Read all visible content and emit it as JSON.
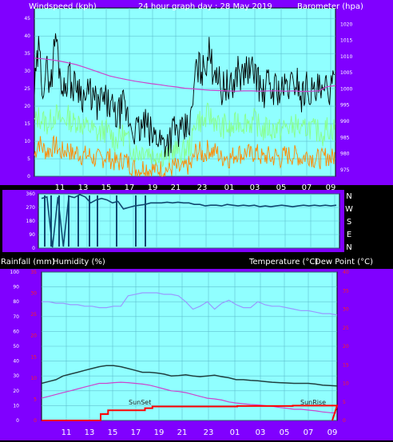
{
  "chart_data": [
    {
      "type": "line",
      "title": "24 hour graph day : 28 May 2019",
      "ylabel": "Windspeed (kph)",
      "y2label": "Barometer (hpa)",
      "x_ticks": [
        "11",
        "13",
        "15",
        "17",
        "19",
        "21",
        "23",
        "01",
        "03",
        "05",
        "07",
        "09"
      ],
      "y_ticks": [
        0,
        5,
        10,
        15,
        20,
        25,
        30,
        35,
        40,
        45
      ],
      "y2_ticks": [
        975,
        980,
        985,
        990,
        995,
        1000,
        1005,
        1010,
        1015,
        1020
      ],
      "ylim": [
        0,
        48
      ],
      "y2lim": [
        973,
        1025
      ],
      "grid": true,
      "series": [
        {
          "role": "gust",
          "color": "#000000",
          "values": [
            24,
            36,
            26,
            30,
            27,
            41,
            30,
            24,
            30,
            25,
            27,
            24,
            22,
            24,
            22,
            20,
            22,
            21,
            20,
            17,
            18,
            20,
            17,
            14,
            13,
            13,
            15,
            13,
            11,
            12,
            10,
            10,
            11,
            14,
            12,
            12,
            14,
            16,
            30,
            31,
            30,
            36,
            31,
            31,
            24,
            27,
            24,
            26,
            31,
            28,
            31,
            29,
            31,
            26,
            23,
            27,
            24,
            26,
            24,
            25,
            26,
            26,
            28,
            22,
            26,
            25,
            23,
            25,
            22,
            26,
            24,
            27
          ]
        },
        {
          "role": "average",
          "color": "#88ff88",
          "values": [
            15,
            17,
            16,
            15,
            16,
            18,
            16,
            16,
            17,
            15,
            16,
            15,
            14,
            14,
            13,
            12,
            13,
            13,
            12,
            10,
            11,
            12,
            10,
            8,
            7,
            7,
            8,
            7,
            6,
            7,
            6,
            6,
            6,
            8,
            7,
            7,
            8,
            9,
            16,
            16,
            15,
            18,
            16,
            16,
            13,
            15,
            13,
            14,
            16,
            15,
            16,
            15,
            16,
            14,
            13,
            14,
            13,
            14,
            13,
            14,
            14,
            14,
            15,
            12,
            14,
            14,
            13,
            13,
            12,
            14,
            13,
            14
          ]
        },
        {
          "role": "low",
          "color": "#ff8800",
          "values": [
            6,
            10,
            8,
            7,
            8,
            9,
            7,
            7,
            8,
            6,
            7,
            6,
            6,
            6,
            5,
            5,
            5,
            6,
            5,
            4,
            4,
            5,
            4,
            3,
            2,
            2,
            3,
            2,
            2,
            2,
            2,
            2,
            2,
            3,
            2,
            2,
            3,
            3,
            7,
            7,
            6,
            8,
            7,
            7,
            5,
            6,
            5,
            6,
            7,
            6,
            7,
            6,
            7,
            6,
            5,
            6,
            5,
            6,
            5,
            6,
            6,
            6,
            6,
            5,
            6,
            6,
            5,
            5,
            5,
            6,
            5,
            6
          ]
        },
        {
          "role": "barometer",
          "color": "#cc44cc",
          "axis": "y2",
          "values": [
            1009.5,
            1009.3,
            1009,
            1008.6,
            1008.1,
            1007.5,
            1006.7,
            1005.8,
            1004.9,
            1004,
            1003.4,
            1002.9,
            1002.4,
            1002,
            1001.6,
            1001.3,
            1000.9,
            1000.6,
            1000.2,
            1000,
            999.8,
            999.6,
            999.5,
            999.4,
            999.3,
            999.4,
            999.4,
            999.3,
            999.4,
            999.4,
            999.3,
            999.4,
            999.2,
            999.3,
            999.4,
            1000.7,
            1001
          ]
        }
      ]
    },
    {
      "type": "scatter",
      "ylabel_right": [
        "N",
        "W",
        "S",
        "E",
        "N"
      ],
      "y_ticks": [
        0,
        90,
        180,
        270,
        360
      ],
      "ylim": [
        0,
        360
      ],
      "series": [
        {
          "role": "direction",
          "color": "#104870",
          "values": [
            330,
            340,
            5,
            340,
            10,
            345,
            335,
            355,
            340,
            300,
            320,
            330,
            320,
            300,
            310,
            260,
            270,
            280,
            285,
            290,
            300,
            300,
            300,
            305,
            300,
            305,
            300,
            300,
            290,
            290,
            280,
            285,
            285,
            280,
            290,
            285,
            280,
            285,
            280,
            285,
            275,
            280,
            275,
            280,
            285,
            280,
            275,
            280,
            285,
            280,
            285,
            280,
            285,
            280,
            285
          ]
        }
      ]
    },
    {
      "type": "line",
      "labels_top": [
        "Rainfall (mm)",
        "Humidity (%)",
        "Temperature (°C)",
        "Dew Point (°C)"
      ],
      "y_ticks_humidity": [
        0,
        10,
        20,
        30,
        40,
        50,
        60,
        70,
        80,
        90,
        100
      ],
      "y_ticks_rain": [
        0,
        5,
        10,
        15,
        20,
        25,
        30,
        35
      ],
      "y_ticks_temp": [
        0,
        5,
        10,
        15,
        20,
        25,
        30,
        35,
        40
      ],
      "annotations": [
        "SunSet",
        "SunRise"
      ],
      "series": [
        {
          "role": "humidity",
          "color": "#9999ff",
          "values": [
            80,
            80,
            79,
            79,
            78,
            78,
            77,
            77,
            76,
            76,
            77,
            77,
            84,
            85,
            86,
            86,
            86,
            85,
            85,
            84,
            80,
            75,
            77,
            80,
            75,
            79,
            81,
            78,
            76,
            76,
            80,
            78,
            77,
            77,
            76,
            75,
            74,
            74,
            73,
            72,
            72,
            71
          ]
        },
        {
          "role": "temperature",
          "color": "#204040",
          "values": [
            10,
            10.5,
            11,
            12,
            12.5,
            13,
            13.5,
            14,
            14.5,
            14.8,
            14.8,
            14.5,
            14,
            13.5,
            13,
            13,
            12.8,
            12.5,
            12,
            12.1,
            12.3,
            12,
            11.8,
            12,
            12.2,
            11.8,
            11.5,
            11,
            11,
            10.8,
            10.7,
            10.5,
            10.3,
            10.2,
            10.1,
            10,
            10,
            10,
            9.8,
            9.5,
            9.4,
            9.3
          ]
        },
        {
          "role": "dew_point",
          "color": "#cc44cc",
          "values": [
            6,
            6.5,
            7,
            7.5,
            8,
            8.5,
            9,
            9.5,
            10,
            10,
            10.2,
            10.3,
            10.2,
            10,
            9.8,
            9.5,
            9,
            8.5,
            8,
            7.8,
            7.5,
            7,
            6.5,
            6,
            5.8,
            5.5,
            5,
            4.7,
            4.5,
            4.3,
            4.2,
            4,
            3.8,
            3.5,
            3.3,
            3,
            3,
            2.8,
            2.6,
            2.3,
            2.1,
            2
          ]
        },
        {
          "role": "rainfall",
          "color": "#ff0000",
          "steps": [
            [
              0,
              0
            ],
            [
              14,
              0
            ],
            [
              16,
              1.5
            ],
            [
              18,
              2.4
            ],
            [
              28,
              2.9
            ],
            [
              30,
              3.3
            ],
            [
              45,
              3.3
            ],
            [
              53,
              3.4
            ],
            [
              68,
              3.5
            ],
            [
              80,
              3.5
            ]
          ]
        }
      ]
    }
  ]
}
